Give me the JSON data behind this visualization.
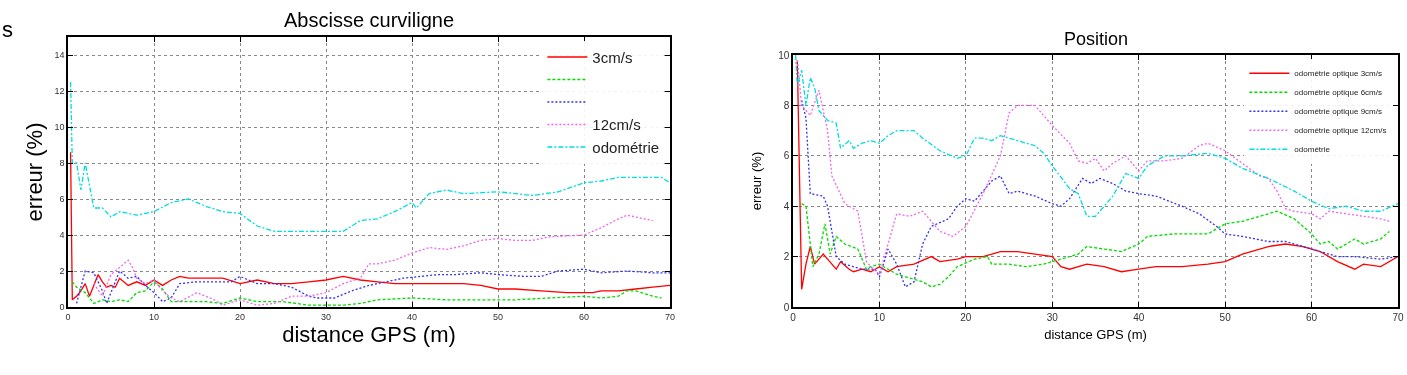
{
  "chart_data": [
    {
      "type": "line",
      "title": "Abscisse curviligne",
      "xlabel": "distance GPS (m)",
      "ylabel": "erreur (%)",
      "xlim": [
        0,
        70
      ],
      "ylim": [
        0,
        15
      ],
      "xticks": [
        0,
        10,
        20,
        30,
        40,
        50,
        60,
        70
      ],
      "yticks": [
        0,
        2,
        4,
        6,
        8,
        10,
        12,
        14
      ],
      "grid": true,
      "legend": "top right",
      "annotations": [
        "s"
      ],
      "series": [
        {
          "name": "3cm/s",
          "color": "#ff0000",
          "line_style": "solid",
          "x": [
            0.3,
            0.5,
            1,
            1.5,
            2,
            2.5,
            3,
            3.5,
            4,
            4.5,
            5,
            5.5,
            6,
            7,
            8,
            9,
            10,
            11,
            12,
            13,
            14,
            16,
            18,
            20,
            22,
            24,
            26,
            28,
            30,
            32,
            34,
            36,
            38,
            40,
            42,
            44,
            46,
            48,
            50,
            52,
            55,
            58,
            61,
            62,
            64,
            66,
            68,
            70
          ],
          "values": [
            8.6,
            0.4,
            0.6,
            0.9,
            1.3,
            0.6,
            1.2,
            1.8,
            1.4,
            1.1,
            1.2,
            1.1,
            1.6,
            1.2,
            1.4,
            1.2,
            1.5,
            1.2,
            1.5,
            1.7,
            1.6,
            1.6,
            1.6,
            1.3,
            1.5,
            1.3,
            1.3,
            1.4,
            1.5,
            1.7,
            1.5,
            1.4,
            1.3,
            1.3,
            1.3,
            1.3,
            1.3,
            1.2,
            1.0,
            1.0,
            0.9,
            0.8,
            0.8,
            0.9,
            0.9,
            1.0,
            1.1,
            1.2
          ]
        },
        {
          "color": "#00dd00",
          "line_style": "dashed",
          "x": [
            0.5,
            1,
            2,
            3,
            4,
            5,
            6,
            7,
            8,
            9,
            10,
            11,
            12,
            14,
            16,
            18,
            20,
            22,
            25,
            28,
            30,
            32,
            34,
            36,
            40,
            44,
            48,
            52,
            56,
            60,
            62,
            64,
            65,
            66,
            68,
            69
          ],
          "values": [
            1.4,
            1.1,
            0.8,
            0.2,
            0.4,
            0.3,
            0.4,
            0.3,
            0.8,
            0.9,
            1.4,
            1.0,
            0.3,
            0.3,
            0.3,
            0.2,
            0.5,
            0.3,
            0.3,
            0.1,
            0.1,
            0.1,
            0.2,
            0.4,
            0.5,
            0.4,
            0.4,
            0.4,
            0.5,
            0.6,
            0.5,
            0.6,
            0.9,
            0.9,
            0.6,
            0.5
          ]
        },
        {
          "color": "#3333ee",
          "line_style": "dotted",
          "x": [
            1,
            2,
            3,
            4,
            4.5,
            5,
            6,
            7,
            8,
            9,
            10,
            11,
            12,
            13,
            15,
            17,
            19,
            20,
            22,
            24,
            26,
            28,
            29,
            31,
            33,
            35,
            37,
            39,
            41,
            43,
            45,
            48,
            50,
            53,
            55,
            57,
            60,
            62,
            65,
            68,
            70
          ],
          "values": [
            0.2,
            2.0,
            1.9,
            0.9,
            0.2,
            0.8,
            2.0,
            1.6,
            1.7,
            1.2,
            0.8,
            0.3,
            0.5,
            1.3,
            1.4,
            1.4,
            1.4,
            1.7,
            1.3,
            1.3,
            1.1,
            0.6,
            0.5,
            0.5,
            0.9,
            1.2,
            1.4,
            1.6,
            1.7,
            1.8,
            1.8,
            1.9,
            1.8,
            1.7,
            1.7,
            2.0,
            2.1,
            1.9,
            2.0,
            1.9,
            1.9
          ]
        },
        {
          "name": "12cm/s",
          "color": "#ee66ee",
          "line_style": "dotted",
          "x": [
            3,
            4,
            5,
            6,
            7,
            7.5,
            8,
            9,
            10,
            11,
            12,
            13,
            15,
            17,
            18,
            20,
            22,
            24,
            26,
            28,
            30,
            32,
            34,
            35,
            36,
            38,
            40,
            42,
            44,
            46,
            48,
            50,
            52,
            54,
            56,
            60,
            62,
            64,
            65,
            66,
            68
          ],
          "values": [
            1.3,
            0.6,
            1.8,
            2.2,
            2.6,
            2.2,
            1.6,
            1.3,
            1.5,
            0.9,
            0.5,
            0.3,
            0.8,
            0.4,
            0.1,
            0.4,
            0.1,
            0.2,
            0.6,
            0.6,
            0.8,
            1.3,
            1.6,
            2.4,
            2.4,
            2.6,
            3.0,
            3.3,
            3.2,
            3.4,
            3.7,
            3.8,
            3.7,
            3.7,
            3.9,
            4.0,
            4.4,
            4.9,
            5.1,
            5.0,
            4.8
          ]
        },
        {
          "name": "odométrie",
          "color": "#00dddd",
          "line_style": "dashdot",
          "x": [
            0.3,
            0.5,
            1,
            1.5,
            2,
            3,
            4,
            5,
            6,
            8,
            10,
            12,
            14,
            16,
            18,
            20,
            22,
            24,
            27,
            30,
            32,
            34,
            36,
            38,
            40,
            40.5,
            42,
            44,
            46,
            50,
            54,
            57,
            60,
            62,
            64,
            67,
            69,
            70
          ],
          "values": [
            12.5,
            8.0,
            8.0,
            6.5,
            8.0,
            5.5,
            5.5,
            5.0,
            5.3,
            5.1,
            5.3,
            5.8,
            6.0,
            5.6,
            5.3,
            5.2,
            4.5,
            4.2,
            4.2,
            4.2,
            4.2,
            4.8,
            4.9,
            5.3,
            5.8,
            5.5,
            6.3,
            6.5,
            6.3,
            6.4,
            6.2,
            6.4,
            6.9,
            7.0,
            7.2,
            7.2,
            7.2,
            6.9
          ]
        }
      ]
    },
    {
      "type": "line",
      "title": "Position",
      "xlabel": "distance GPS (m)",
      "ylabel": "erreur (%)",
      "xlim": [
        0,
        70
      ],
      "ylim": [
        0,
        10
      ],
      "xticks": [
        0,
        10,
        20,
        30,
        40,
        50,
        60,
        70
      ],
      "yticks": [
        0,
        2,
        4,
        6,
        8,
        10
      ],
      "grid": true,
      "legend": "top right",
      "series": [
        {
          "name": "odométrie optique 3cm/s",
          "color": "#ff0000",
          "line_style": "solid",
          "x": [
            0.5,
            1,
            1.5,
            2,
            2.5,
            3.5,
            4.5,
            5,
            5.5,
            6.5,
            7,
            8,
            9,
            10,
            11,
            12,
            14,
            16,
            17,
            19,
            20,
            22,
            24,
            26,
            28,
            30,
            31,
            32,
            34,
            36,
            38,
            40,
            42,
            45,
            48,
            50,
            52,
            55,
            57,
            59,
            61,
            63,
            65,
            66,
            68,
            70
          ],
          "values": [
            9.8,
            0.7,
            1.7,
            2.4,
            1.7,
            2.1,
            1.7,
            1.5,
            1.8,
            1.5,
            1.4,
            1.5,
            1.4,
            1.6,
            1.4,
            1.6,
            1.7,
            2.0,
            1.8,
            1.9,
            2.0,
            2.0,
            2.2,
            2.2,
            2.1,
            2.0,
            1.6,
            1.5,
            1.7,
            1.6,
            1.4,
            1.5,
            1.6,
            1.6,
            1.7,
            1.8,
            2.1,
            2.4,
            2.5,
            2.4,
            2.2,
            1.8,
            1.5,
            1.7,
            1.6,
            2.0
          ]
        },
        {
          "name": "odométrie optique 6cm/s",
          "color": "#00dd00",
          "line_style": "dashed",
          "x": [
            1,
            1.5,
            2.3,
            3,
            3.7,
            4.3,
            5,
            6,
            7.5,
            8.5,
            9,
            10,
            11,
            12,
            13,
            15,
            16,
            17,
            18,
            19,
            21,
            22.5,
            23,
            25,
            27,
            29,
            31,
            33,
            34,
            36,
            38,
            40,
            41,
            44,
            48,
            50,
            52,
            54,
            56,
            58,
            60,
            61,
            62,
            63,
            65,
            66,
            68,
            69
          ],
          "values": [
            4.1,
            4.0,
            1.6,
            2.1,
            3.3,
            2.1,
            2.8,
            2.5,
            2.3,
            1.5,
            1.6,
            1.7,
            1.5,
            1.3,
            1.2,
            1.0,
            0.8,
            0.9,
            1.2,
            1.6,
            1.9,
            2.0,
            1.7,
            1.7,
            1.6,
            1.7,
            1.9,
            2.1,
            2.4,
            2.3,
            2.2,
            2.5,
            2.8,
            2.9,
            2.9,
            3.3,
            3.4,
            3.6,
            3.8,
            3.5,
            2.9,
            2.5,
            2.6,
            2.3,
            2.7,
            2.5,
            2.7,
            3.0
          ]
        },
        {
          "name": "odométrie optique 9cm/s",
          "color": "#3333ee",
          "line_style": "dotted",
          "x": [
            1,
            1.5,
            2,
            3.5,
            4,
            5,
            6,
            8,
            9.5,
            10,
            11,
            12,
            13,
            14,
            15,
            16,
            18,
            19,
            20,
            21,
            23,
            24,
            25,
            26,
            28,
            30,
            31,
            32,
            33.5,
            34.5,
            35.5,
            37,
            38.5,
            40,
            42,
            45,
            47,
            49,
            50,
            52,
            55,
            57,
            59,
            61,
            63,
            65,
            68,
            70
          ],
          "values": [
            8.2,
            7.5,
            4.5,
            4.4,
            4.0,
            2.0,
            1.7,
            1.5,
            1.5,
            1.2,
            2.3,
            1.7,
            0.8,
            1.0,
            2.5,
            3.2,
            3.5,
            4.0,
            4.3,
            4.2,
            5.0,
            5.2,
            4.5,
            4.6,
            4.4,
            4.1,
            4.0,
            4.3,
            5.1,
            4.9,
            5.1,
            4.9,
            4.6,
            4.5,
            4.4,
            4.0,
            3.7,
            3.2,
            2.9,
            2.8,
            2.6,
            2.6,
            2.4,
            2.2,
            2.0,
            2.0,
            1.9,
            2.0
          ]
        },
        {
          "name": "odométrie optique 12cm/s",
          "color": "#ee66ee",
          "line_style": "dotted",
          "x": [
            0.5,
            1,
            2,
            3,
            4,
            4.5,
            6,
            7.5,
            8.5,
            9,
            10,
            11,
            12,
            13.5,
            15,
            17,
            18.5,
            20,
            22,
            24,
            25,
            26,
            28,
            30,
            32,
            33,
            34,
            35,
            36,
            37,
            38.5,
            40,
            41,
            43,
            45,
            47,
            48,
            50,
            52,
            54,
            55,
            56,
            57,
            58,
            60,
            61,
            62,
            64,
            66,
            68,
            69
          ],
          "values": [
            9.8,
            8.0,
            7.6,
            8.6,
            7.0,
            5.2,
            4.1,
            3.8,
            1.8,
            1.6,
            1.3,
            2.5,
            3.7,
            3.6,
            3.8,
            3.0,
            2.8,
            3.2,
            4.5,
            6.0,
            7.7,
            8.0,
            8.0,
            7.2,
            6.5,
            5.8,
            5.7,
            5.9,
            5.4,
            5.7,
            6.0,
            5.4,
            5.8,
            5.8,
            5.9,
            6.4,
            6.5,
            6.2,
            5.7,
            5.2,
            5.1,
            4.6,
            3.9,
            3.8,
            3.7,
            3.5,
            3.8,
            3.7,
            3.6,
            3.5,
            3.4
          ]
        },
        {
          "name": "odométrie",
          "color": "#00dddd",
          "line_style": "dashdot",
          "x": [
            0.3,
            0.5,
            1,
            1.5,
            2,
            2.5,
            3,
            3.5,
            4,
            5,
            5.5,
            6.5,
            7,
            8,
            9,
            10,
            11,
            12,
            14,
            15,
            17,
            19,
            20,
            21,
            22,
            23,
            24,
            25,
            27,
            28,
            29,
            30,
            32,
            33,
            34,
            35,
            37,
            38.5,
            40,
            41,
            43,
            45,
            48,
            50,
            52,
            55,
            58,
            60,
            62,
            64,
            66,
            68,
            70
          ],
          "values": [
            10.0,
            8.8,
            9.4,
            8.0,
            9.1,
            8.7,
            7.8,
            7.6,
            7.4,
            7.3,
            6.3,
            6.6,
            6.3,
            6.5,
            6.6,
            6.5,
            6.8,
            7.0,
            7.0,
            6.7,
            6.2,
            5.9,
            6.0,
            6.7,
            6.7,
            6.6,
            6.8,
            6.7,
            6.5,
            6.4,
            6.1,
            5.6,
            4.7,
            4.5,
            3.6,
            3.6,
            4.4,
            5.3,
            5.1,
            5.6,
            6.0,
            6.0,
            6.1,
            5.9,
            5.5,
            5.1,
            4.6,
            4.2,
            3.9,
            4.0,
            3.8,
            3.8,
            4.1
          ]
        }
      ]
    }
  ]
}
